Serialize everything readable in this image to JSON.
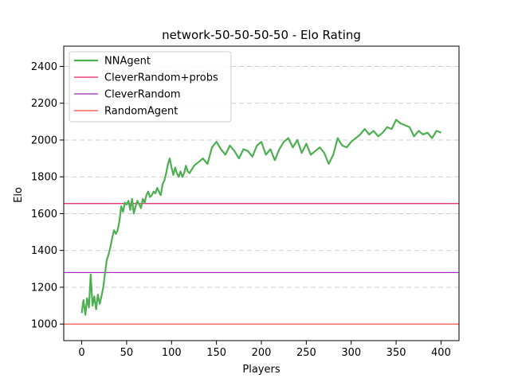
{
  "chart_data": {
    "type": "line",
    "title": "network-50-50-50-50 - Elo Rating",
    "xlabel": "Players",
    "ylabel": "Elo",
    "xlim": [
      -20,
      420
    ],
    "ylim": [
      910,
      2510
    ],
    "xticks": [
      0,
      50,
      100,
      150,
      200,
      250,
      300,
      350,
      400
    ],
    "yticks": [
      1000,
      1200,
      1400,
      1600,
      1800,
      2000,
      2200,
      2400
    ],
    "grid": "horizontal dashed",
    "legend_position": "top-left",
    "series": [
      {
        "name": "NNAgent",
        "color": "#4caf50",
        "x": [
          0,
          2,
          4,
          6,
          8,
          10,
          12,
          14,
          16,
          18,
          20,
          22,
          24,
          26,
          28,
          30,
          32,
          34,
          36,
          38,
          40,
          42,
          44,
          46,
          48,
          50,
          52,
          54,
          56,
          58,
          60,
          62,
          64,
          66,
          68,
          70,
          72,
          74,
          76,
          78,
          80,
          82,
          84,
          86,
          88,
          90,
          92,
          94,
          96,
          98,
          100,
          102,
          104,
          106,
          108,
          110,
          112,
          114,
          116,
          118,
          120,
          125,
          130,
          135,
          140,
          145,
          150,
          155,
          160,
          165,
          170,
          175,
          180,
          185,
          190,
          195,
          200,
          205,
          210,
          215,
          220,
          225,
          230,
          235,
          240,
          245,
          250,
          255,
          260,
          265,
          270,
          275,
          280,
          285,
          290,
          295,
          300,
          305,
          310,
          315,
          320,
          325,
          330,
          335,
          340,
          345,
          350,
          355,
          360,
          365,
          370,
          375,
          380,
          385,
          390,
          395,
          400
        ],
        "y": [
          1060,
          1130,
          1050,
          1140,
          1090,
          1270,
          1100,
          1150,
          1080,
          1160,
          1110,
          1150,
          1200,
          1280,
          1350,
          1380,
          1420,
          1470,
          1510,
          1490,
          1510,
          1560,
          1640,
          1610,
          1660,
          1650,
          1670,
          1620,
          1680,
          1600,
          1640,
          1670,
          1650,
          1630,
          1680,
          1660,
          1700,
          1720,
          1690,
          1700,
          1720,
          1710,
          1740,
          1720,
          1700,
          1760,
          1780,
          1820,
          1870,
          1900,
          1850,
          1810,
          1850,
          1820,
          1800,
          1830,
          1800,
          1820,
          1860,
          1830,
          1820,
          1860,
          1880,
          1900,
          1870,
          1960,
          1990,
          1950,
          1920,
          1970,
          1940,
          1900,
          1950,
          1940,
          1910,
          1970,
          1990,
          1920,
          1950,
          1890,
          1950,
          1990,
          2010,
          1960,
          2000,
          1930,
          1980,
          1920,
          1940,
          1960,
          1930,
          1870,
          1920,
          2010,
          1970,
          1960,
          1990,
          2010,
          2030,
          2060,
          2030,
          2050,
          2020,
          2040,
          2070,
          2060,
          2110,
          2090,
          2080,
          2070,
          2020,
          2050,
          2030,
          2040,
          2010,
          2050,
          2040
        ]
      },
      {
        "name": "CleverRandom+probs",
        "color": "#e91e63",
        "value": 1655
      },
      {
        "name": "CleverRandom",
        "color": "#9c27b0",
        "value": 1280
      },
      {
        "name": "RandomAgent",
        "color": "#f44336",
        "value": 1000
      }
    ]
  }
}
